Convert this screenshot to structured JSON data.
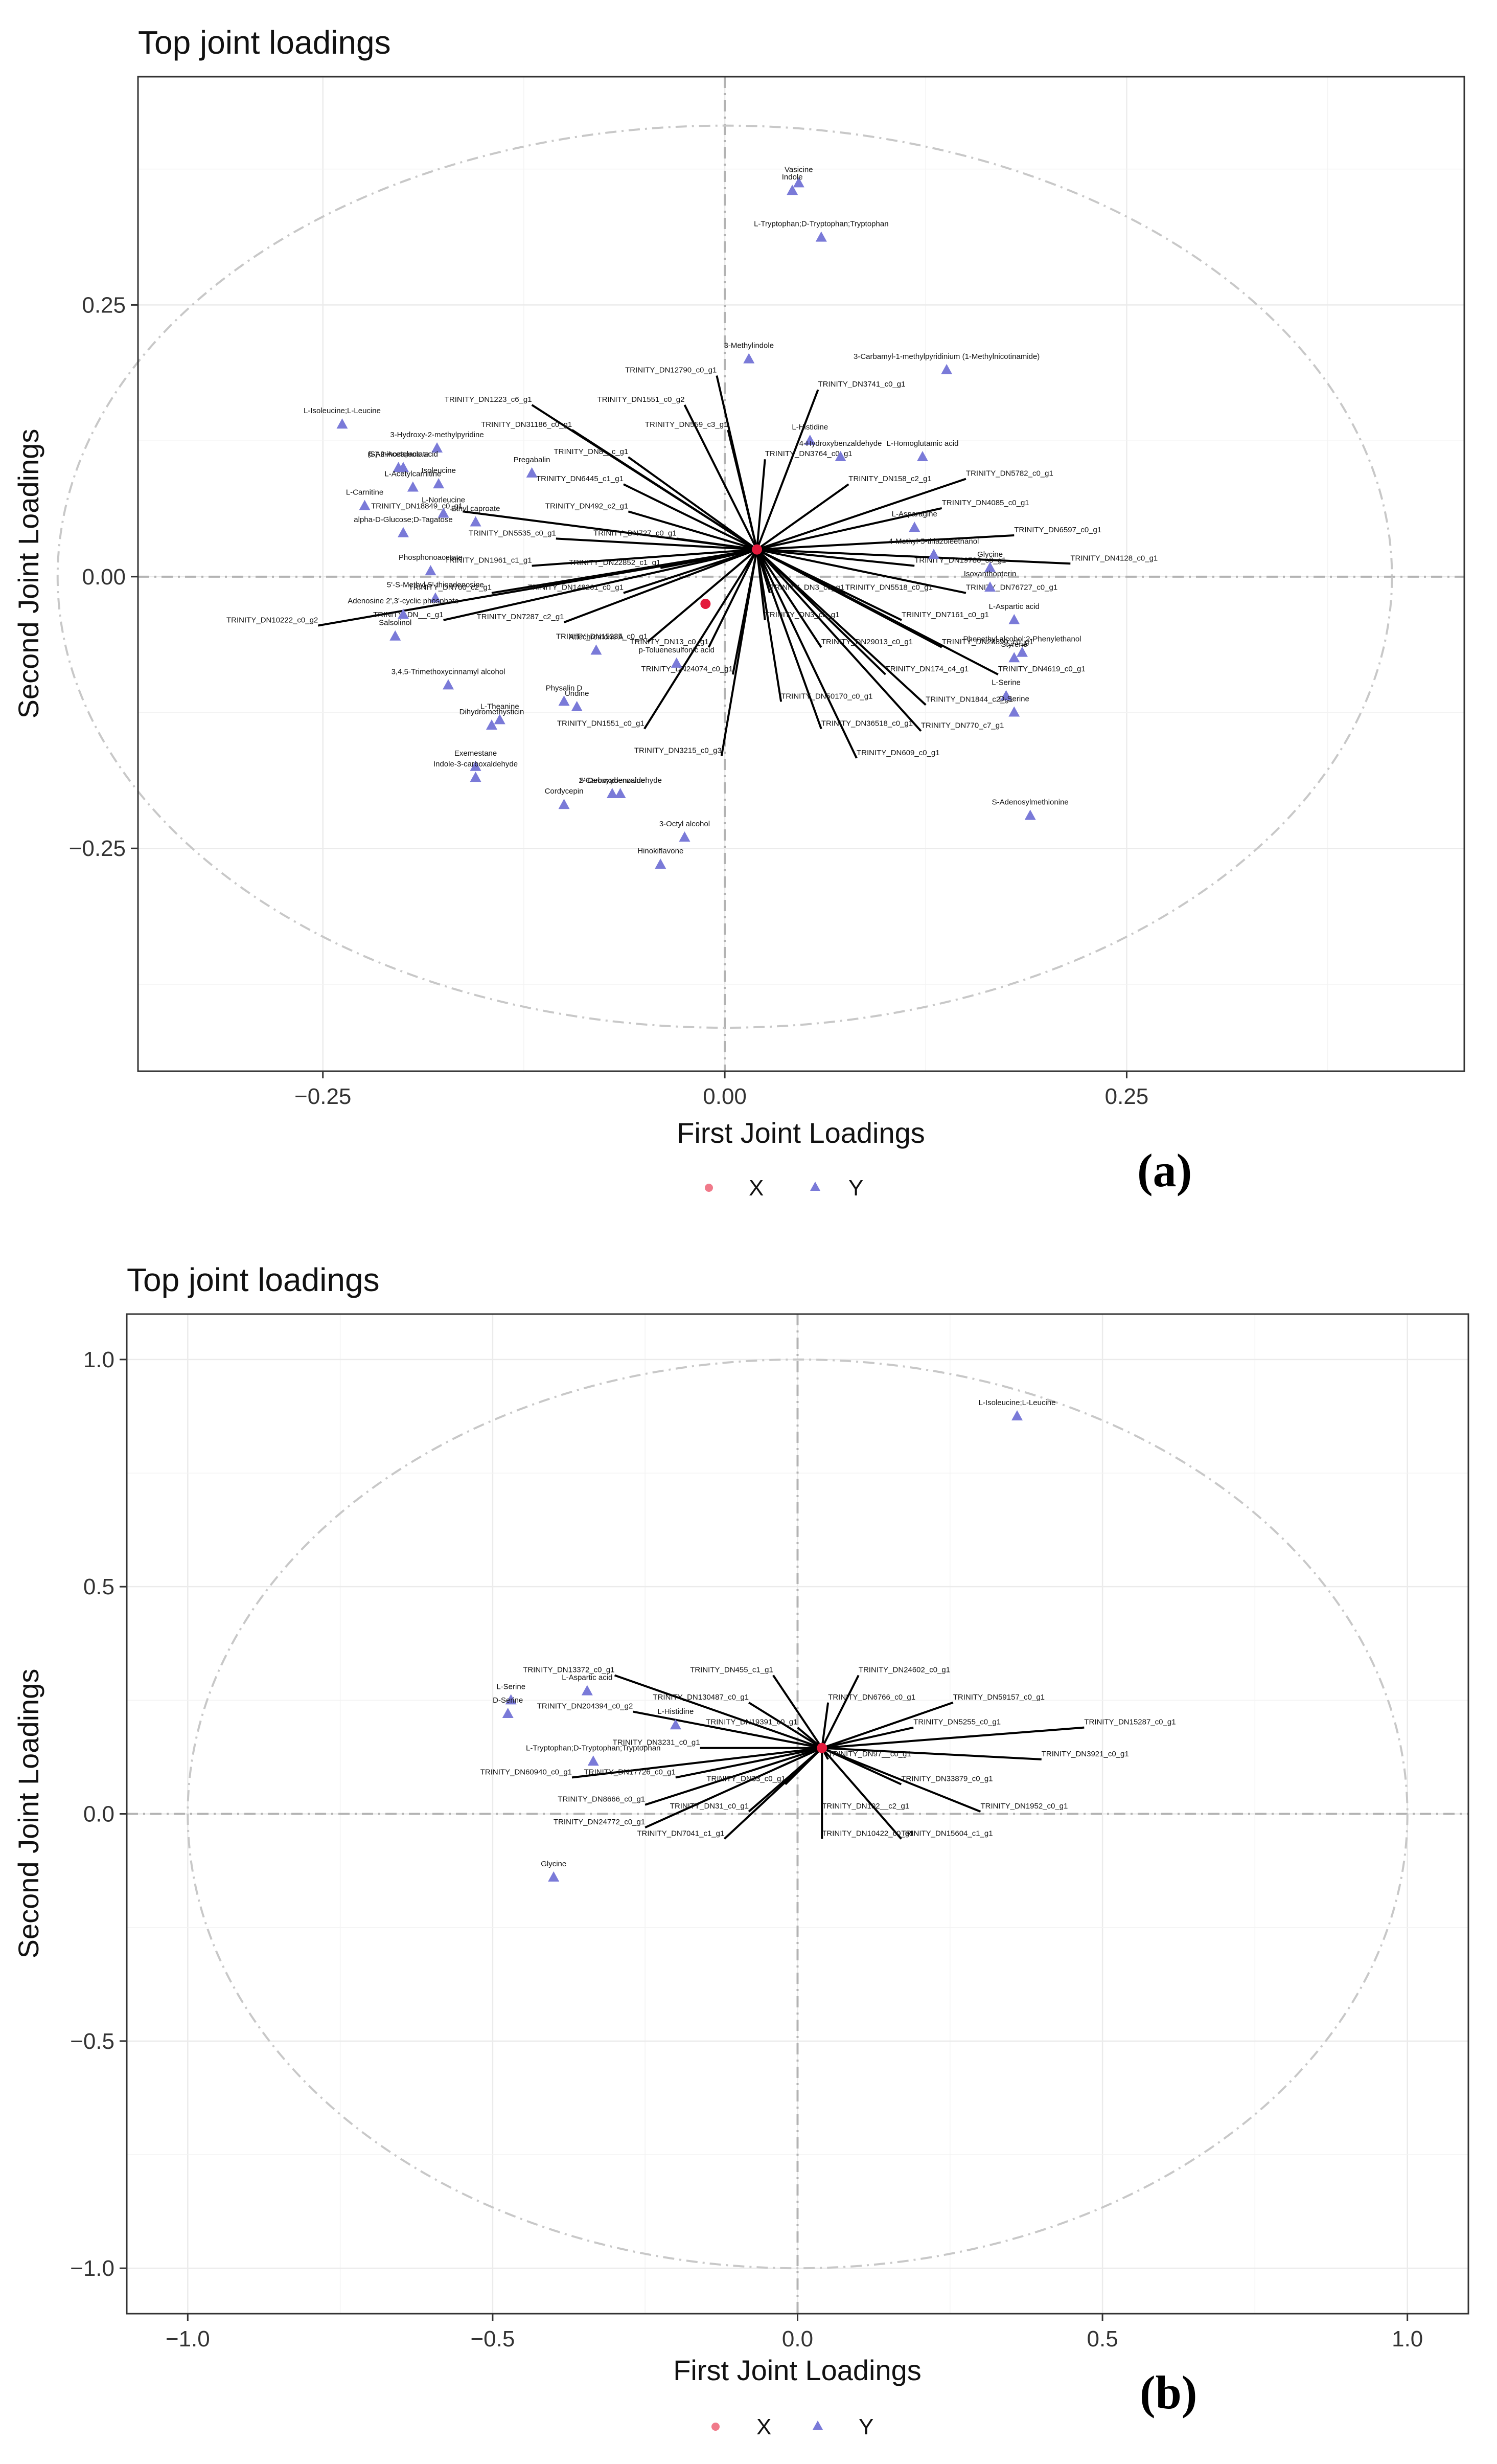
{
  "chart_data": [
    {
      "id": "a",
      "type": "scatter",
      "title": "Top joint loadings",
      "xlabel": "First Joint Loadings",
      "ylabel": "Second Joint Loadings",
      "panel_label": "(a)",
      "xlim": [
        -0.365,
        0.46
      ],
      "ylim": [
        -0.455,
        0.46
      ],
      "xticks": [
        -0.25,
        0,
        0.25
      ],
      "xtick_labels": [
        "−0.25",
        "0.00",
        "0.25"
      ],
      "yticks": [
        -0.25,
        0,
        0.25
      ],
      "ytick_labels": [
        "−0.25",
        "0.00",
        "0.25"
      ],
      "circle_radius": 0.415,
      "legend": {
        "entries": [
          "X",
          "Y"
        ],
        "position": "bottom"
      },
      "colors": {
        "X": "#f07a8a",
        "Y": "#7a7ad8",
        "center": "#e31a3c"
      },
      "centers": [
        [
          0.02,
          0.025
        ],
        [
          -0.012,
          -0.025
        ]
      ],
      "arrows_origin": [
        0.02,
        0.025
      ],
      "x_labels": [
        {
          "t": "TRINITY_DN12790_c0_g1",
          "x": -0.005,
          "y": 0.185
        },
        {
          "t": "TRINITY_DN3741_c0_g1",
          "x": 0.058,
          "y": 0.172
        },
        {
          "t": "TRINITY_DN1223_c6_g1",
          "x": -0.12,
          "y": 0.158
        },
        {
          "t": "TRINITY_DN1551_c0_g2",
          "x": -0.025,
          "y": 0.158
        },
        {
          "t": "TRINITY_DN31186_c0_g1",
          "x": -0.095,
          "y": 0.135
        },
        {
          "t": "TRINITY_DN559_c3_g1",
          "x": 0.002,
          "y": 0.135
        },
        {
          "t": "TRINITY_DN8__c_g1",
          "x": -0.06,
          "y": 0.11
        },
        {
          "t": "TRINITY_DN3764_c0_g1",
          "x": 0.025,
          "y": 0.108
        },
        {
          "t": "TRINITY_DN158_c2_g1",
          "x": 0.077,
          "y": 0.085
        },
        {
          "t": "TRINITY_DN5782_c0_g1",
          "x": 0.15,
          "y": 0.09
        },
        {
          "t": "TRINITY_DN6445_c1_g1",
          "x": -0.063,
          "y": 0.085
        },
        {
          "t": "TRINITY_DN18849_c0_g1",
          "x": -0.163,
          "y": 0.06
        },
        {
          "t": "TRINITY_DN492_c2_g1",
          "x": -0.06,
          "y": 0.06
        },
        {
          "t": "TRINITY_DN4085_c0_g1",
          "x": 0.135,
          "y": 0.063
        },
        {
          "t": "TRINITY_DN5535_c0_g1",
          "x": -0.105,
          "y": 0.035
        },
        {
          "t": "TRINITY_DN727_c0_g1",
          "x": -0.03,
          "y": 0.035
        },
        {
          "t": "TRINITY_DN6597_c0_g1",
          "x": 0.18,
          "y": 0.038
        },
        {
          "t": "TRINITY_DN1961_c1_g1",
          "x": -0.12,
          "y": 0.01
        },
        {
          "t": "TRINITY_DN22852_c1_g1",
          "x": -0.04,
          "y": 0.008
        },
        {
          "t": "TRINITY_DN19786_c0_g1",
          "x": 0.118,
          "y": 0.01
        },
        {
          "t": "TRINITY_DN4128_c0_g1",
          "x": 0.215,
          "y": 0.012
        },
        {
          "t": "TRINITY_DN700_c2_g1",
          "x": -0.145,
          "y": -0.015
        },
        {
          "t": "TRINITY_DN148261_c0_g1",
          "x": -0.063,
          "y": -0.015
        },
        {
          "t": "TRINITY_DN3_c0_g1",
          "x": 0.028,
          "y": -0.015
        },
        {
          "t": "TRINITY_DN5518_c0_g1",
          "x": 0.075,
          "y": -0.015
        },
        {
          "t": "TRINITY_DN76727_c0_g1",
          "x": 0.15,
          "y": -0.015
        },
        {
          "t": "TRINITY_DN10222_c0_g2",
          "x": -0.253,
          "y": -0.045
        },
        {
          "t": "TRINITY_DN__c_g1",
          "x": -0.175,
          "y": -0.04
        },
        {
          "t": "TRINITY_DN7287_c2_g1",
          "x": -0.1,
          "y": -0.042
        },
        {
          "t": "TRINITY_DN3_c0_g1",
          "x": 0.025,
          "y": -0.04
        },
        {
          "t": "TRINITY_DN7161_c0_g1",
          "x": 0.11,
          "y": -0.04
        },
        {
          "t": "TRINITY_DN15235_c0_g1",
          "x": -0.048,
          "y": -0.06
        },
        {
          "t": "TRINITY_DN13_c0_g1",
          "x": -0.01,
          "y": -0.065
        },
        {
          "t": "TRINITY_DN29013_c0_g1",
          "x": 0.06,
          "y": -0.065
        },
        {
          "t": "TRINITY_DN28890_c0_g1",
          "x": 0.135,
          "y": -0.065
        },
        {
          "t": "TRINITY_DN24074_c0_g1",
          "x": 0.005,
          "y": -0.09
        },
        {
          "t": "TRINITY_DN174_c4_g1",
          "x": 0.1,
          "y": -0.09
        },
        {
          "t": "TRINITY_DN4619_c0_g1",
          "x": 0.17,
          "y": -0.09
        },
        {
          "t": "TRINITY_DN50170_c0_g1",
          "x": 0.035,
          "y": -0.115
        },
        {
          "t": "TRINITY_DN1844_c2_g1",
          "x": 0.125,
          "y": -0.118
        },
        {
          "t": "TRINITY_DN1551_c0_g1",
          "x": -0.05,
          "y": -0.14
        },
        {
          "t": "TRINITY_DN36518_c0_g1",
          "x": 0.06,
          "y": -0.14
        },
        {
          "t": "TRINITY_DN770_c7_g1",
          "x": 0.122,
          "y": -0.142
        },
        {
          "t": "TRINITY_DN3215_c0_g3",
          "x": -0.002,
          "y": -0.165
        },
        {
          "t": "TRINITY_DN609_c0_g1",
          "x": 0.082,
          "y": -0.167
        }
      ],
      "y_points": [
        {
          "t": "Vasicine",
          "x": 0.046,
          "y": 0.362
        },
        {
          "t": "Indole",
          "x": 0.042,
          "y": 0.355
        },
        {
          "t": "L-Tryptophan;D-Tryptophan;Tryptophan",
          "x": 0.06,
          "y": 0.312
        },
        {
          "t": "3-Methylindole",
          "x": 0.015,
          "y": 0.2
        },
        {
          "t": "3-Carbamyl-1-methylpyridinium (1-Methylnicotinamide)",
          "x": 0.138,
          "y": 0.19
        },
        {
          "t": "L-Isoleucine;L-Leucine",
          "x": -0.238,
          "y": 0.14
        },
        {
          "t": "(S)-2-Acetolactate",
          "x": -0.203,
          "y": 0.1
        },
        {
          "t": "3-Hydroxy-2-methylpyridine",
          "x": -0.179,
          "y": 0.118
        },
        {
          "t": "6-Aminocaproic acid",
          "x": -0.2,
          "y": 0.1
        },
        {
          "t": "Pregabalin",
          "x": -0.12,
          "y": 0.095
        },
        {
          "t": "Isoleucine",
          "x": -0.178,
          "y": 0.085
        },
        {
          "t": "L-Acetylcarnitine",
          "x": -0.194,
          "y": 0.082
        },
        {
          "t": "L-Carnitine",
          "x": -0.224,
          "y": 0.065
        },
        {
          "t": "L-Norleucine",
          "x": -0.175,
          "y": 0.058
        },
        {
          "t": "alpha-D-Glucose;D-Tagatose",
          "x": -0.2,
          "y": 0.04
        },
        {
          "t": "L-Histidine",
          "x": 0.053,
          "y": 0.125
        },
        {
          "t": "4-Hydroxybenzaldehyde",
          "x": 0.072,
          "y": 0.11
        },
        {
          "t": "L-Homoglutamic acid",
          "x": 0.123,
          "y": 0.11
        },
        {
          "t": "L-Asparagine",
          "x": 0.118,
          "y": 0.045
        },
        {
          "t": "4-Methyl-5-thiazoleethanol",
          "x": 0.13,
          "y": 0.02
        },
        {
          "t": "Glycine",
          "x": 0.165,
          "y": 0.008
        },
        {
          "t": "Isoxanthopterin",
          "x": 0.165,
          "y": -0.01
        },
        {
          "t": "Phosphonoacetate",
          "x": -0.183,
          "y": 0.005
        },
        {
          "t": "Ethyl caproate",
          "x": -0.155,
          "y": 0.05
        },
        {
          "t": "5'-S-Methyl-5'-thioadenosine",
          "x": -0.18,
          "y": -0.02
        },
        {
          "t": "Adenosine 2',3'-cyclic phosphate",
          "x": -0.2,
          "y": -0.035
        },
        {
          "t": "Salsolinol",
          "x": -0.205,
          "y": -0.055
        },
        {
          "t": "Attechromone A",
          "x": -0.08,
          "y": -0.068
        },
        {
          "t": "3,4,5-Trimethoxycinnamyl alcohol",
          "x": -0.172,
          "y": -0.1
        },
        {
          "t": "Uridine",
          "x": -0.092,
          "y": -0.12
        },
        {
          "t": "L-Theanine",
          "x": -0.14,
          "y": -0.132
        },
        {
          "t": "Dihydromethysticin",
          "x": -0.145,
          "y": -0.137
        },
        {
          "t": "p-Toluenesulfonic acid",
          "x": -0.03,
          "y": -0.08
        },
        {
          "t": "Physalin D",
          "x": -0.1,
          "y": -0.115
        },
        {
          "t": "Exemestane",
          "x": -0.155,
          "y": -0.175
        },
        {
          "t": "Indole-3-carboxaldehyde",
          "x": -0.155,
          "y": -0.185
        },
        {
          "t": "2-Carboxybenzaldehyde",
          "x": -0.065,
          "y": -0.2
        },
        {
          "t": "5'-Deoxyadenosine",
          "x": -0.07,
          "y": -0.2
        },
        {
          "t": "Cordycepin",
          "x": -0.1,
          "y": -0.21
        },
        {
          "t": "3-Octyl alcohol",
          "x": -0.025,
          "y": -0.24
        },
        {
          "t": "Hinokiflavone",
          "x": -0.04,
          "y": -0.265
        },
        {
          "t": "Phenethyl alcohol;2-Phenylethanol",
          "x": 0.185,
          "y": -0.07
        },
        {
          "t": "Styrene",
          "x": 0.18,
          "y": -0.075
        },
        {
          "t": "L-Aspartic acid",
          "x": 0.18,
          "y": -0.04
        },
        {
          "t": "L-Serine",
          "x": 0.175,
          "y": -0.11
        },
        {
          "t": "D-Serine",
          "x": 0.18,
          "y": -0.125
        },
        {
          "t": "S-Adenosylmethionine",
          "x": 0.19,
          "y": -0.22
        }
      ]
    },
    {
      "id": "b",
      "type": "scatter",
      "title": "Top joint loadings",
      "xlabel": "First Joint Loadings",
      "ylabel": "Second Joint Loadings",
      "panel_label": "(b)",
      "xlim": [
        -1.1,
        1.1
      ],
      "ylim": [
        -1.1,
        1.1
      ],
      "xticks": [
        -1.0,
        -0.5,
        0,
        0.5,
        1.0
      ],
      "xtick_labels": [
        "−1.0",
        "−0.5",
        "0.0",
        "0.5",
        "1.0"
      ],
      "yticks": [
        -1.0,
        -0.5,
        0,
        0.5,
        1.0
      ],
      "ytick_labels": [
        "−1.0",
        "−0.5",
        "0.0",
        "0.5",
        "1.0"
      ],
      "circle_radius": 1.0,
      "legend": {
        "entries": [
          "X",
          "Y"
        ],
        "position": "bottom"
      },
      "colors": {
        "X": "#f07a8a",
        "Y": "#7a7ad8",
        "center": "#e31a3c"
      },
      "centers": [
        [
          0.04,
          0.145
        ]
      ],
      "arrows_origin": [
        0.04,
        0.145
      ],
      "x_labels": [
        {
          "t": "TRINITY_DN13372_c0_g1",
          "x": -0.3,
          "y": 0.305
        },
        {
          "t": "TRINITY_DN455_c1_g1",
          "x": -0.04,
          "y": 0.305
        },
        {
          "t": "TRINITY_DN24602_c0_g1",
          "x": 0.1,
          "y": 0.305
        },
        {
          "t": "TRINITY_DN130487_c0_g1",
          "x": -0.08,
          "y": 0.245
        },
        {
          "t": "TRINITY_DN6766_c0_g1",
          "x": 0.05,
          "y": 0.245
        },
        {
          "t": "TRINITY_DN59157_c0_g1",
          "x": 0.255,
          "y": 0.245
        },
        {
          "t": "TRINITY_DN204394_c0_g2",
          "x": -0.27,
          "y": 0.225
        },
        {
          "t": "TRINITY_DN19391_c0_g1",
          "x": 0.0,
          "y": 0.19
        },
        {
          "t": "TRINITY_DN5255_c0_g1",
          "x": 0.19,
          "y": 0.19
        },
        {
          "t": "TRINITY_DN15287_c0_g1",
          "x": 0.47,
          "y": 0.19
        },
        {
          "t": "TRINITY_DN3231_c0_g1",
          "x": -0.16,
          "y": 0.145
        },
        {
          "t": "TRINITY_DN97__c0_g1",
          "x": 0.05,
          "y": 0.12
        },
        {
          "t": "TRINITY_DN3921_c0_g1",
          "x": 0.4,
          "y": 0.12
        },
        {
          "t": "TRINITY_DN60940_c0_g1",
          "x": -0.37,
          "y": 0.08
        },
        {
          "t": "TRINITY_DN17726_c0_g1",
          "x": -0.2,
          "y": 0.08
        },
        {
          "t": "TRINITY_DN33_c0_g1",
          "x": -0.02,
          "y": 0.065
        },
        {
          "t": "TRINITY_DN33879_c0_g1",
          "x": 0.17,
          "y": 0.065
        },
        {
          "t": "TRINITY_DN8666_c0_g1",
          "x": -0.25,
          "y": 0.02
        },
        {
          "t": "TRINITY_DN31_c0_g1",
          "x": -0.08,
          "y": 0.005
        },
        {
          "t": "TRINITY_DN102__c2_g1",
          "x": 0.04,
          "y": 0.005
        },
        {
          "t": "TRINITY_DN1952_c0_g1",
          "x": 0.3,
          "y": 0.005
        },
        {
          "t": "TRINITY_DN24772_c0_g1",
          "x": -0.25,
          "y": -0.03
        },
        {
          "t": "TRINITY_DN7041_c1_g1",
          "x": -0.12,
          "y": -0.055
        },
        {
          "t": "TRINITY_DN10422_c0_g1",
          "x": 0.04,
          "y": -0.055
        },
        {
          "t": "TRINITY_DN15604_c1_g1",
          "x": 0.17,
          "y": -0.055
        }
      ],
      "y_points": [
        {
          "t": "L-Isoleucine;L-Leucine",
          "x": 0.36,
          "y": 0.875
        },
        {
          "t": "L-Serine",
          "x": -0.47,
          "y": 0.25
        },
        {
          "t": "L-Aspartic acid",
          "x": -0.345,
          "y": 0.27
        },
        {
          "t": "D-Serine",
          "x": -0.475,
          "y": 0.22
        },
        {
          "t": "L-Histidine",
          "x": -0.2,
          "y": 0.195
        },
        {
          "t": "L-Tryptophan;D-Tryptophan;Tryptophan",
          "x": -0.335,
          "y": 0.115
        },
        {
          "t": "Glycine",
          "x": -0.4,
          "y": -0.14
        }
      ]
    }
  ]
}
